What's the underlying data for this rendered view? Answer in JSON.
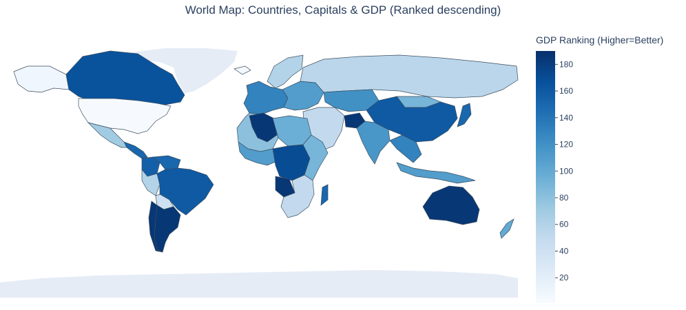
{
  "title": "World Map: Countries, Capitals & GDP (Ranked descending)",
  "colorbar": {
    "title": "GDP Ranking (Higher=Better)",
    "ticks": [
      20,
      40,
      60,
      80,
      100,
      120,
      140,
      160,
      180
    ],
    "range": [
      1,
      190
    ],
    "colorscale": [
      "#f7fbff",
      "#deebf7",
      "#c6dbef",
      "#9ecae1",
      "#6baed6",
      "#4292c6",
      "#2171b5",
      "#08519c",
      "#08306b"
    ]
  },
  "regions": [
    {
      "name": "Alaska",
      "rank": 8
    },
    {
      "name": "Canada",
      "rank": 165
    },
    {
      "name": "United States",
      "rank": 2
    },
    {
      "name": "Greenland",
      "rank": null
    },
    {
      "name": "Mexico",
      "rank": 70
    },
    {
      "name": "Central America",
      "rank": 150
    },
    {
      "name": "Colombia",
      "rank": 155
    },
    {
      "name": "Venezuela",
      "rank": 150
    },
    {
      "name": "Peru",
      "rank": 60
    },
    {
      "name": "Brazil",
      "rank": 160
    },
    {
      "name": "Bolivia",
      "rank": 40
    },
    {
      "name": "Argentina",
      "rank": 185
    },
    {
      "name": "Chile",
      "rank": 185
    },
    {
      "name": "Iceland",
      "rank": 5
    },
    {
      "name": "Scandinavia",
      "rank": 60
    },
    {
      "name": "Western Europe",
      "rank": 130
    },
    {
      "name": "Eastern Europe",
      "rank": 110
    },
    {
      "name": "Russia",
      "rank": 55
    },
    {
      "name": "Kazakhstan",
      "rank": 120
    },
    {
      "name": "China",
      "rank": 160
    },
    {
      "name": "Mongolia",
      "rank": 90
    },
    {
      "name": "India",
      "rank": 115
    },
    {
      "name": "Middle East",
      "rank": 50
    },
    {
      "name": "Afghanistan",
      "rank": 185
    },
    {
      "name": "Southeast Asia",
      "rank": 130
    },
    {
      "name": "Japan",
      "rank": 150
    },
    {
      "name": "Indonesia",
      "rank": 110
    },
    {
      "name": "Australia",
      "rank": 185
    },
    {
      "name": "New Zealand",
      "rank": 100
    },
    {
      "name": "North Africa",
      "rank": 80
    },
    {
      "name": "Algeria",
      "rank": 185
    },
    {
      "name": "Egypt",
      "rank": 95
    },
    {
      "name": "West Africa",
      "rank": 110
    },
    {
      "name": "Central Africa",
      "rank": 170
    },
    {
      "name": "Angola",
      "rank": 185
    },
    {
      "name": "East Africa",
      "rank": 90
    },
    {
      "name": "Southern Africa",
      "rank": 50
    },
    {
      "name": "Madagascar",
      "rank": 150
    },
    {
      "name": "Antarctica",
      "rank": null
    }
  ]
}
